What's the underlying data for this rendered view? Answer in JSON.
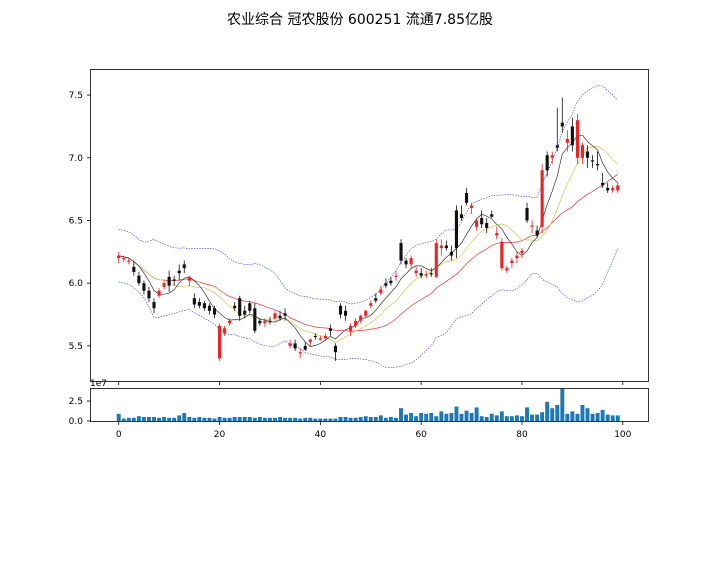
{
  "title": "农业综合  冠农股份 600251 流通7.85亿股",
  "chart_data": [
    {
      "type": "candlestick",
      "panel": "price",
      "x_ticks": [
        0,
        20,
        40,
        60,
        80,
        100
      ],
      "y_ticks": [
        "5.5",
        "6.0",
        "6.5",
        "7.0",
        "7.5"
      ],
      "y_tick_values": [
        5.5,
        6.0,
        6.5,
        7.0,
        7.5
      ],
      "ylim": [
        5.22,
        7.7
      ],
      "xlim": [
        -5.5,
        105
      ],
      "grid": false,
      "colors": {
        "up": "#ee2222",
        "down": "#111111",
        "ma5": "#333333",
        "ma10": "#c8c850",
        "ma20": "#ee3333",
        "bands": "#3333ee"
      },
      "ohlc": [
        [
          6.2,
          6.25,
          6.16,
          6.22
        ],
        [
          6.19,
          6.22,
          6.17,
          6.2
        ],
        [
          6.17,
          6.2,
          6.15,
          6.18
        ],
        [
          6.13,
          6.18,
          6.06,
          6.09
        ],
        [
          6.06,
          6.09,
          5.98,
          6.0
        ],
        [
          6.0,
          6.02,
          5.91,
          5.94
        ],
        [
          5.94,
          5.97,
          5.85,
          5.88
        ],
        [
          5.85,
          5.88,
          5.76,
          5.8
        ],
        [
          5.9,
          5.96,
          5.88,
          5.94
        ],
        [
          5.97,
          6.02,
          5.95,
          6.0
        ],
        [
          6.05,
          6.1,
          5.93,
          5.98
        ],
        [
          6.03,
          6.06,
          5.98,
          6.02
        ],
        [
          6.1,
          6.15,
          6.02,
          6.08
        ],
        [
          6.15,
          6.18,
          6.08,
          6.12
        ],
        [
          6.02,
          6.06,
          5.98,
          6.05
        ],
        [
          5.88,
          5.92,
          5.8,
          5.83
        ],
        [
          5.85,
          5.88,
          5.8,
          5.82
        ],
        [
          5.84,
          5.86,
          5.78,
          5.8
        ],
        [
          5.82,
          5.84,
          5.75,
          5.78
        ],
        [
          5.8,
          5.82,
          5.72,
          5.75
        ],
        [
          5.4,
          5.68,
          5.38,
          5.66
        ],
        [
          5.6,
          5.66,
          5.58,
          5.64
        ],
        [
          5.68,
          5.72,
          5.66,
          5.7
        ],
        [
          5.82,
          5.85,
          5.78,
          5.8
        ],
        [
          5.88,
          5.9,
          5.7,
          5.74
        ],
        [
          5.78,
          5.82,
          5.72,
          5.75
        ],
        [
          5.84,
          5.86,
          5.76,
          5.78
        ],
        [
          5.8,
          5.84,
          5.6,
          5.62
        ],
        [
          5.7,
          5.72,
          5.66,
          5.68
        ],
        [
          5.68,
          5.72,
          5.65,
          5.7
        ],
        [
          5.7,
          5.73,
          5.67,
          5.69
        ],
        [
          5.72,
          5.78,
          5.7,
          5.76
        ],
        [
          5.74,
          5.78,
          5.7,
          5.72
        ],
        [
          5.76,
          5.8,
          5.7,
          5.74
        ],
        [
          5.5,
          5.55,
          5.48,
          5.52
        ],
        [
          5.52,
          5.55,
          5.46,
          5.48
        ],
        [
          5.44,
          5.48,
          5.4,
          5.45
        ],
        [
          5.5,
          5.53,
          5.46,
          5.47
        ],
        [
          5.53,
          5.56,
          5.5,
          5.55
        ],
        [
          5.58,
          5.6,
          5.55,
          5.57
        ],
        [
          5.55,
          5.58,
          5.54,
          5.56
        ],
        [
          5.56,
          5.6,
          5.54,
          5.58
        ],
        [
          5.64,
          5.67,
          5.58,
          5.62
        ],
        [
          5.5,
          5.52,
          5.38,
          5.45
        ],
        [
          5.82,
          5.84,
          5.72,
          5.75
        ],
        [
          5.78,
          5.82,
          5.7,
          5.74
        ],
        [
          5.62,
          5.68,
          5.58,
          5.66
        ],
        [
          5.66,
          5.72,
          5.64,
          5.7
        ],
        [
          5.7,
          5.75,
          5.68,
          5.74
        ],
        [
          5.74,
          5.79,
          5.72,
          5.78
        ],
        [
          5.82,
          5.86,
          5.8,
          5.84
        ],
        [
          5.88,
          5.92,
          5.84,
          5.86
        ],
        [
          5.92,
          5.98,
          5.9,
          5.95
        ],
        [
          6.0,
          6.04,
          5.96,
          5.98
        ],
        [
          6.02,
          6.05,
          5.98,
          6.0
        ],
        [
          6.05,
          6.1,
          6.02,
          6.06
        ],
        [
          6.32,
          6.35,
          6.15,
          6.18
        ],
        [
          6.18,
          6.2,
          6.12,
          6.15
        ],
        [
          6.15,
          6.22,
          6.12,
          6.2
        ],
        [
          6.08,
          6.13,
          6.05,
          6.1
        ],
        [
          6.08,
          6.12,
          6.04,
          6.06
        ],
        [
          6.06,
          6.1,
          6.04,
          6.07
        ],
        [
          6.08,
          6.12,
          6.05,
          6.07
        ],
        [
          6.05,
          6.35,
          6.04,
          6.32
        ],
        [
          6.28,
          6.35,
          6.22,
          6.3
        ],
        [
          6.3,
          6.34,
          6.26,
          6.28
        ],
        [
          6.25,
          6.3,
          6.18,
          6.22
        ],
        [
          6.58,
          6.62,
          6.2,
          6.28
        ],
        [
          6.55,
          6.62,
          6.5,
          6.52
        ],
        [
          6.72,
          6.76,
          6.62,
          6.64
        ],
        [
          6.6,
          6.64,
          6.55,
          6.62
        ],
        [
          6.45,
          6.52,
          6.42,
          6.5
        ],
        [
          6.52,
          6.58,
          6.44,
          6.47
        ],
        [
          6.48,
          6.52,
          6.4,
          6.44
        ],
        [
          6.55,
          6.58,
          6.52,
          6.53
        ],
        [
          6.38,
          6.45,
          6.35,
          6.4
        ],
        [
          6.12,
          6.36,
          6.1,
          6.33
        ],
        [
          6.1,
          6.14,
          6.08,
          6.12
        ],
        [
          6.16,
          6.2,
          6.12,
          6.18
        ],
        [
          6.2,
          6.25,
          6.16,
          6.22
        ],
        [
          6.24,
          6.28,
          6.2,
          6.26
        ],
        [
          6.6,
          6.64,
          6.48,
          6.5
        ],
        [
          6.45,
          6.5,
          6.4,
          6.46
        ],
        [
          6.42,
          6.46,
          6.36,
          6.38
        ],
        [
          6.45,
          6.95,
          6.4,
          6.9
        ],
        [
          7.02,
          7.05,
          6.85,
          6.9
        ],
        [
          7.0,
          7.05,
          6.95,
          7.02
        ],
        [
          7.1,
          7.4,
          7.05,
          7.08
        ],
        [
          7.28,
          7.48,
          7.2,
          7.25
        ],
        [
          7.12,
          7.22,
          7.05,
          7.15
        ],
        [
          7.25,
          7.32,
          7.05,
          7.1
        ],
        [
          7.0,
          7.35,
          6.95,
          7.3
        ],
        [
          7.0,
          7.12,
          6.95,
          7.1
        ],
        [
          7.05,
          7.1,
          6.92,
          7.0
        ],
        [
          6.98,
          7.02,
          6.92,
          6.97
        ],
        [
          6.95,
          7.05,
          6.9,
          6.94
        ],
        [
          6.8,
          6.88,
          6.76,
          6.78
        ],
        [
          6.76,
          6.8,
          6.72,
          6.74
        ],
        [
          6.74,
          6.78,
          6.72,
          6.76
        ],
        [
          6.74,
          6.8,
          6.72,
          6.78
        ]
      ]
    },
    {
      "type": "bar",
      "panel": "volume",
      "scale_label": "1e7",
      "y_ticks": [
        "0.0",
        "2.5"
      ],
      "y_tick_values": [
        0,
        2.5
      ],
      "ylim": [
        0,
        4.0
      ],
      "x_ticks": [
        "0",
        "20",
        "40",
        "60",
        "80",
        "100"
      ],
      "x_tick_values": [
        0,
        20,
        40,
        60,
        80,
        100
      ],
      "color": "#1f77b4",
      "values": [
        0.9,
        0.3,
        0.4,
        0.4,
        0.6,
        0.5,
        0.5,
        0.5,
        0.4,
        0.5,
        0.4,
        0.4,
        0.7,
        1.0,
        0.5,
        0.4,
        0.5,
        0.4,
        0.4,
        0.3,
        0.5,
        0.4,
        0.4,
        0.5,
        0.5,
        0.5,
        0.5,
        0.4,
        0.5,
        0.4,
        0.4,
        0.4,
        0.5,
        0.4,
        0.4,
        0.4,
        0.3,
        0.4,
        0.4,
        0.3,
        0.3,
        0.3,
        0.3,
        0.3,
        0.5,
        0.5,
        0.4,
        0.4,
        0.5,
        0.6,
        0.5,
        0.5,
        0.7,
        0.4,
        0.5,
        0.4,
        1.6,
        0.8,
        1.0,
        0.6,
        1.0,
        0.9,
        1.0,
        0.6,
        1.2,
        0.9,
        1.0,
        1.8,
        0.9,
        1.3,
        1.0,
        1.7,
        0.6,
        0.5,
        0.9,
        0.7,
        1.2,
        0.6,
        0.6,
        0.7,
        0.6,
        1.7,
        0.8,
        0.8,
        1.1,
        2.4,
        1.6,
        2.0,
        4.0,
        0.9,
        1.2,
        0.9,
        2.0,
        1.6,
        0.9,
        1.0,
        1.4,
        0.8,
        0.7,
        0.7
      ]
    }
  ]
}
